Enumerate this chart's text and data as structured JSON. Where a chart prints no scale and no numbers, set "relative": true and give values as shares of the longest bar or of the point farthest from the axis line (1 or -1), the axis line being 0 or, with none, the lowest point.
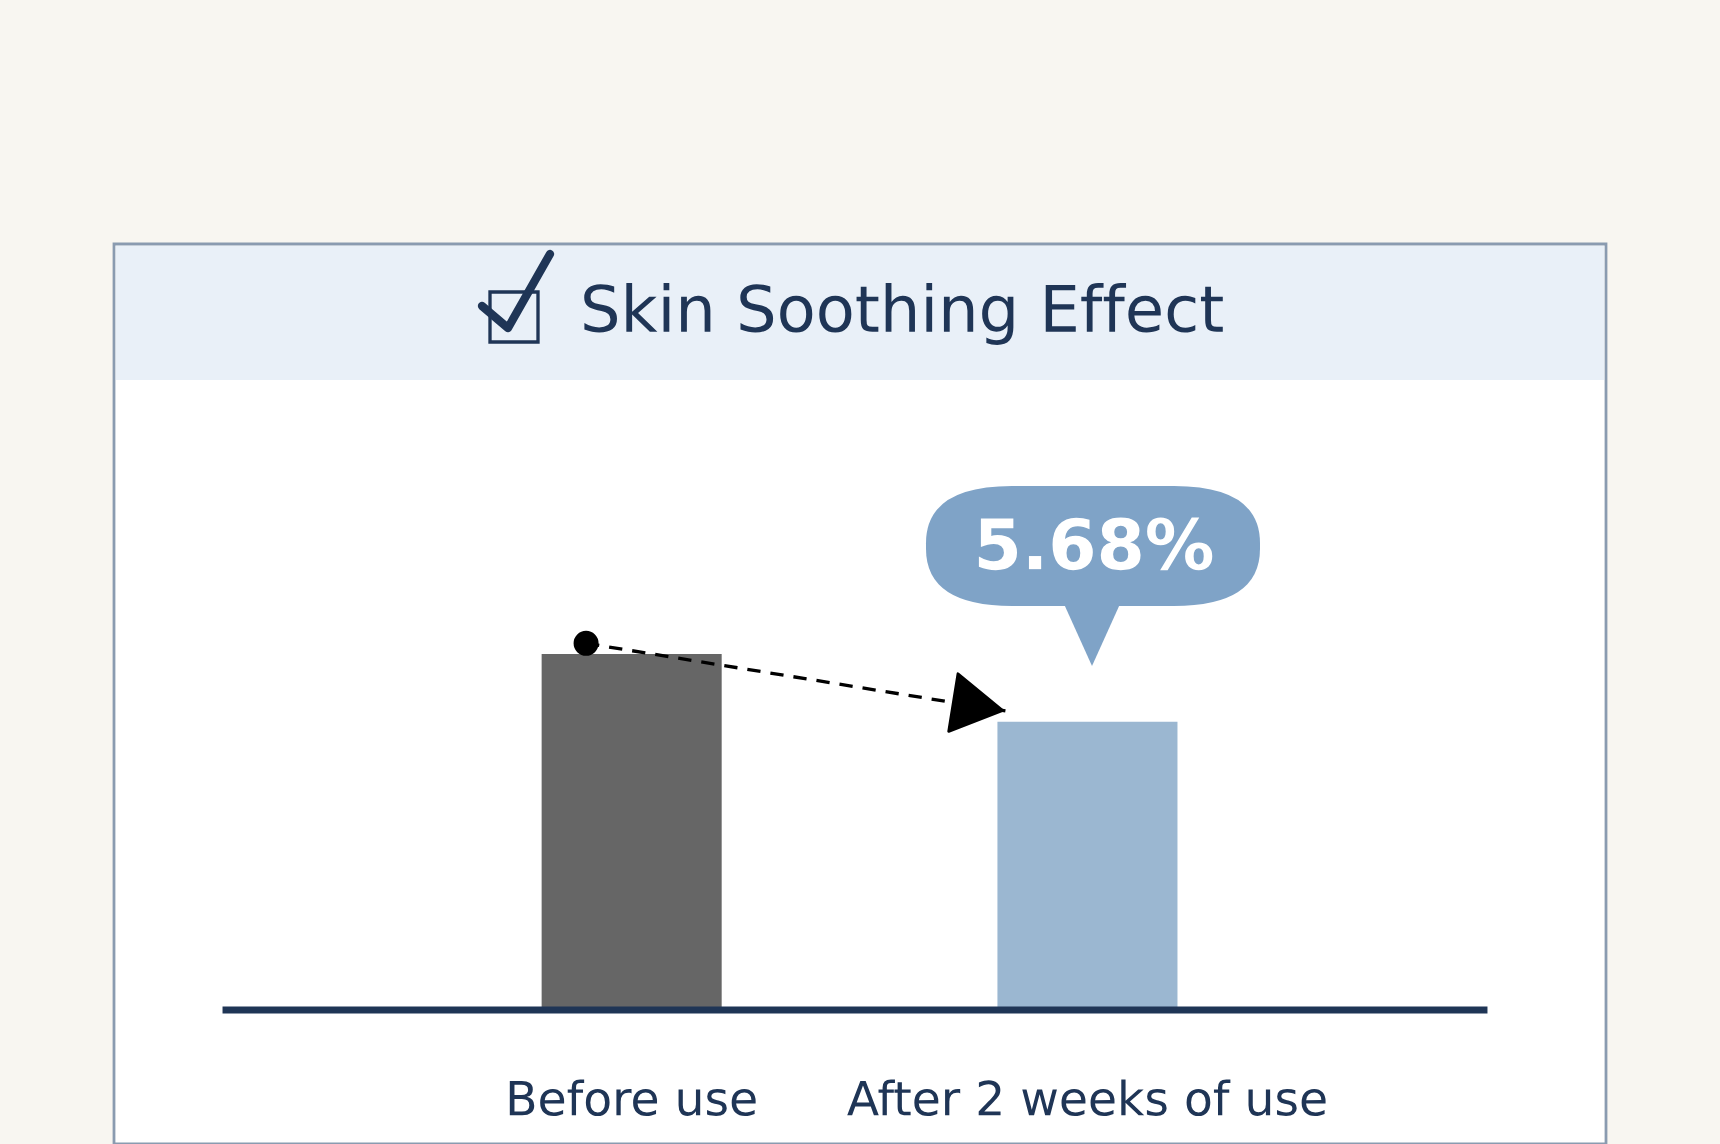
{
  "chart_data": {
    "type": "bar",
    "title": "Skin Soothing Effect",
    "categories": [
      "Before use",
      "After 2 weeks of use"
    ],
    "values": [
      1,
      0.81
    ],
    "colors": [
      "#666666",
      "#9bb7d1"
    ],
    "relative": true,
    "annotations": [
      "5.68%"
    ]
  }
}
